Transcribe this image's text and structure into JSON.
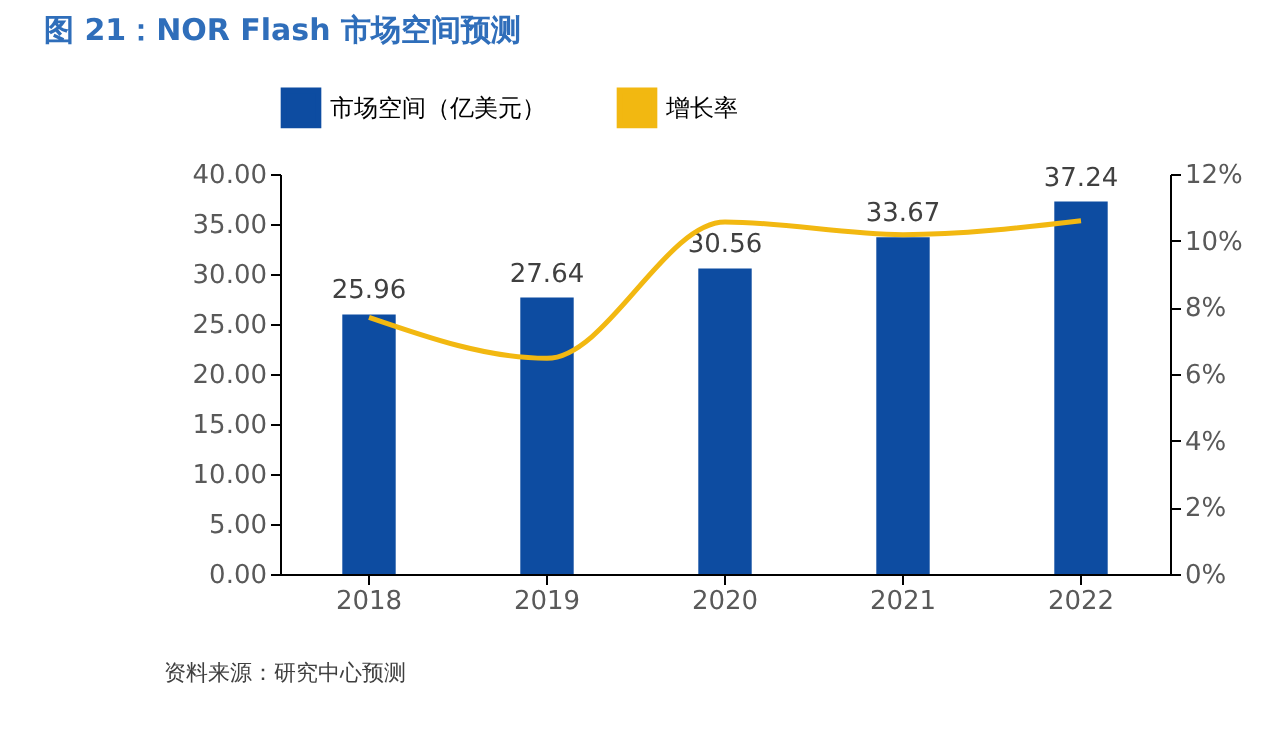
{
  "chart_data": {
    "type": "bar",
    "title": "图 21：NOR Flash 市场空间预测",
    "categories": [
      "2018",
      "2019",
      "2020",
      "2021",
      "2022"
    ],
    "series": [
      {
        "name": "市场空间（亿美元）",
        "color": "#0d4ca1",
        "values": [
          25.96,
          27.64,
          30.56,
          33.67,
          37.24
        ],
        "value_labels": [
          "25.96",
          "27.64",
          "30.56",
          "33.67",
          "37.24"
        ]
      },
      {
        "name": "增长率",
        "type": "line",
        "axis": "y2",
        "color": "#f2b811",
        "values": [
          7.7,
          6.47,
          10.56,
          10.18,
          10.6
        ]
      }
    ],
    "ylim": [
      0,
      40
    ],
    "yticks": [
      {
        "value": 0,
        "label": "0.00"
      },
      {
        "value": 5,
        "label": "5.00"
      },
      {
        "value": 10,
        "label": "10.00"
      },
      {
        "value": 15,
        "label": "15.00"
      },
      {
        "value": 20,
        "label": "20.00"
      },
      {
        "value": 25,
        "label": "25.00"
      },
      {
        "value": 30,
        "label": "30.00"
      },
      {
        "value": 35,
        "label": "35.00"
      },
      {
        "value": 40,
        "label": "40.00"
      }
    ],
    "y2lim": [
      0,
      12
    ],
    "y2ticks": [
      {
        "value": 0,
        "label": "0%"
      },
      {
        "value": 2,
        "label": "2%"
      },
      {
        "value": 4,
        "label": "4%"
      },
      {
        "value": 6,
        "label": "6%"
      },
      {
        "value": 8,
        "label": "8%"
      },
      {
        "value": 10,
        "label": "10%"
      },
      {
        "value": 12,
        "label": "12%"
      }
    ],
    "grid": false,
    "legend": "top",
    "marker": "none",
    "line_style": "solid",
    "annotations": [
      "资料来源：研究中心预测"
    ]
  }
}
